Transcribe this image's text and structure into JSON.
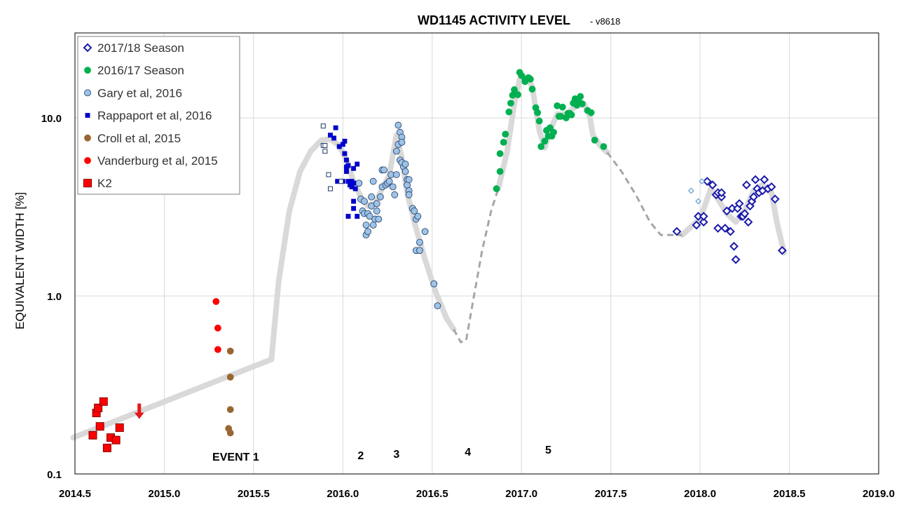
{
  "chart_data": {
    "type": "scatter",
    "title": "WD1145 ACTIVITY LEVEL",
    "subtitle": "- v8618",
    "ylabel": "EQUIVALENT WIDTH [%]",
    "xlabel": "",
    "xlim": [
      2014.5,
      2019.0
    ],
    "ylim": [
      0.1,
      30
    ],
    "yscale": "log",
    "grid": true,
    "legend_position": "top-left",
    "x_ticks": [
      "2014.5",
      "2015.0",
      "2015.5",
      "2016.0",
      "2016.5",
      "2017.0",
      "2017.5",
      "2018.0",
      "2018.5",
      "2019.0"
    ],
    "x_tick_values": [
      2014.5,
      2015.0,
      2015.5,
      2016.0,
      2016.5,
      2017.0,
      2017.5,
      2018.0,
      2018.5,
      2019.0
    ],
    "y_ticks": [
      "0.1",
      "1.0",
      "10.0"
    ],
    "y_tick_values": [
      0.1,
      1.0,
      10.0
    ],
    "annotations": [
      {
        "text": "EVENT 1",
        "x": 2015.4,
        "y": 0.1
      },
      {
        "text": "2",
        "x": 2016.1,
        "y": 0.1
      },
      {
        "text": "3",
        "x": 2016.3,
        "y": 0.1
      },
      {
        "text": "4",
        "x": 2016.7,
        "y": 0.1
      },
      {
        "text": "5",
        "x": 2017.15,
        "y": 0.1
      }
    ],
    "upper_limit_arrow": {
      "x": 2014.86,
      "y": 0.2,
      "color": "#e31a1c"
    },
    "trend_solid_segments": [
      [
        [
          2014.49,
          0.16
        ],
        [
          2015.6,
          0.44
        ],
        [
          2015.64,
          1.2
        ],
        [
          2015.7,
          3.0
        ],
        [
          2015.76,
          5.0
        ],
        [
          2015.82,
          6.5
        ],
        [
          2015.88,
          7.5
        ],
        [
          2015.93,
          7.6
        ],
        [
          2015.98,
          7.0
        ],
        [
          2016.02,
          5.8
        ],
        [
          2016.06,
          4.4
        ],
        [
          2016.1,
          3.6
        ],
        [
          2016.14,
          3.2
        ],
        [
          2016.18,
          3.3
        ],
        [
          2016.22,
          4.0
        ],
        [
          2016.26,
          4.8
        ],
        [
          2016.3,
          8.0
        ],
        [
          2016.33,
          6.0
        ],
        [
          2016.36,
          3.8
        ],
        [
          2016.4,
          2.6
        ],
        [
          2016.46,
          1.6
        ],
        [
          2016.52,
          1.05
        ],
        [
          2016.58,
          0.75
        ],
        [
          2016.62,
          0.65
        ]
      ],
      [
        [
          2016.87,
          4.0
        ],
        [
          2016.92,
          6.5
        ],
        [
          2016.96,
          12.0
        ],
        [
          2016.99,
          16.5
        ],
        [
          2017.03,
          17.0
        ],
        [
          2017.06,
          15.0
        ],
        [
          2017.1,
          8.5
        ],
        [
          2017.13,
          6.8
        ],
        [
          2017.16,
          8.5
        ],
        [
          2017.2,
          10.5
        ],
        [
          2017.25,
          10.5
        ],
        [
          2017.3,
          11.5
        ],
        [
          2017.35,
          12.0
        ],
        [
          2017.38,
          10.5
        ],
        [
          2017.4,
          8.0
        ],
        [
          2017.44,
          7.0
        ],
        [
          2017.48,
          6.4
        ]
      ],
      [
        [
          2017.9,
          2.2
        ],
        [
          2017.96,
          2.5
        ],
        [
          2018.0,
          2.7
        ],
        [
          2018.06,
          4.0
        ],
        [
          2018.1,
          3.5
        ],
        [
          2018.15,
          2.9
        ],
        [
          2018.2,
          2.6
        ],
        [
          2018.25,
          3.0
        ],
        [
          2018.3,
          3.9
        ],
        [
          2018.35,
          4.2
        ],
        [
          2018.4,
          3.8
        ],
        [
          2018.43,
          2.6
        ],
        [
          2018.47,
          1.75
        ]
      ]
    ],
    "trend_dashed_segments": [
      [
        [
          2016.62,
          0.65
        ],
        [
          2016.66,
          0.55
        ],
        [
          2016.69,
          0.56
        ],
        [
          2016.73,
          0.95
        ],
        [
          2016.78,
          1.8
        ],
        [
          2016.83,
          3.0
        ],
        [
          2016.87,
          4.0
        ]
      ],
      [
        [
          2017.48,
          6.4
        ],
        [
          2017.56,
          5.0
        ],
        [
          2017.64,
          3.7
        ],
        [
          2017.72,
          2.6
        ],
        [
          2017.78,
          2.2
        ],
        [
          2017.85,
          2.2
        ],
        [
          2017.9,
          2.2
        ]
      ]
    ],
    "series": [
      {
        "name": "2017/18 Season",
        "marker": "diamond",
        "color": "#1a1aaa",
        "fill": "#ffffff",
        "points": [
          [
            2017.87,
            2.3
          ],
          [
            2017.98,
            2.5
          ],
          [
            2017.99,
            2.8
          ],
          [
            2018.02,
            2.6
          ],
          [
            2018.02,
            2.8
          ],
          [
            2018.04,
            4.4
          ],
          [
            2018.07,
            4.2
          ],
          [
            2018.09,
            3.7
          ],
          [
            2018.1,
            3.8
          ],
          [
            2018.12,
            3.6
          ],
          [
            2018.12,
            3.8
          ],
          [
            2018.1,
            2.4
          ],
          [
            2018.14,
            2.4
          ],
          [
            2018.15,
            3.0
          ],
          [
            2018.17,
            2.3
          ],
          [
            2018.18,
            3.1
          ],
          [
            2018.19,
            1.9
          ],
          [
            2018.2,
            1.6
          ],
          [
            2018.21,
            3.1
          ],
          [
            2018.22,
            3.3
          ],
          [
            2018.23,
            2.8
          ],
          [
            2018.24,
            2.8
          ],
          [
            2018.25,
            2.9
          ],
          [
            2018.26,
            4.2
          ],
          [
            2018.27,
            2.6
          ],
          [
            2018.28,
            3.2
          ],
          [
            2018.29,
            3.4
          ],
          [
            2018.3,
            3.6
          ],
          [
            2018.31,
            4.5
          ],
          [
            2018.32,
            4.0
          ],
          [
            2018.33,
            3.8
          ],
          [
            2018.35,
            3.9
          ],
          [
            2018.36,
            4.5
          ],
          [
            2018.38,
            4.0
          ],
          [
            2018.4,
            4.1
          ],
          [
            2018.42,
            3.5
          ],
          [
            2018.46,
            1.8
          ]
        ]
      },
      {
        "name": "",
        "marker": "diamond-small",
        "color": "#5b9bd5",
        "fill": "#ffffff",
        "points": [
          [
            2017.95,
            3.9
          ],
          [
            2017.99,
            3.4
          ],
          [
            2018.01,
            4.4
          ]
        ]
      },
      {
        "name": "2016/17 Season",
        "marker": "circle",
        "color": "#00b050",
        "fill": "#00b050",
        "points": [
          [
            2016.86,
            4.0
          ],
          [
            2016.88,
            5.0
          ],
          [
            2016.88,
            6.3
          ],
          [
            2016.9,
            7.3
          ],
          [
            2016.91,
            8.1
          ],
          [
            2016.93,
            10.8
          ],
          [
            2016.94,
            12.1
          ],
          [
            2016.95,
            13.4
          ],
          [
            2016.96,
            14.4
          ],
          [
            2016.98,
            13.5
          ],
          [
            2016.99,
            18.0
          ],
          [
            2017.0,
            17.3
          ],
          [
            2017.02,
            16.5
          ],
          [
            2017.02,
            16.0
          ],
          [
            2017.04,
            16.8
          ],
          [
            2017.05,
            16.5
          ],
          [
            2017.06,
            14.5
          ],
          [
            2017.08,
            11.4
          ],
          [
            2017.09,
            10.7
          ],
          [
            2017.1,
            9.6
          ],
          [
            2017.11,
            6.9
          ],
          [
            2017.13,
            7.4
          ],
          [
            2017.14,
            8.5
          ],
          [
            2017.15,
            7.9
          ],
          [
            2017.16,
            8.8
          ],
          [
            2017.17,
            7.9
          ],
          [
            2017.18,
            8.3
          ],
          [
            2017.2,
            11.7
          ],
          [
            2017.21,
            10.2
          ],
          [
            2017.22,
            10.2
          ],
          [
            2017.23,
            11.5
          ],
          [
            2017.25,
            10.0
          ],
          [
            2017.26,
            10.6
          ],
          [
            2017.27,
            10.6
          ],
          [
            2017.28,
            10.4
          ],
          [
            2017.29,
            12.1
          ],
          [
            2017.3,
            12.8
          ],
          [
            2017.31,
            11.8
          ],
          [
            2017.32,
            12.5
          ],
          [
            2017.33,
            13.2
          ],
          [
            2017.34,
            12.0
          ],
          [
            2017.37,
            11.0
          ],
          [
            2017.39,
            10.7
          ],
          [
            2017.41,
            7.5
          ],
          [
            2017.46,
            6.9
          ]
        ]
      },
      {
        "name": "Gary et al, 2016",
        "marker": "circle",
        "color": "#1f3864",
        "fill": "#9dc3e6",
        "points": [
          [
            2016.09,
            4.3
          ],
          [
            2016.1,
            3.5
          ],
          [
            2016.11,
            3.0
          ],
          [
            2016.12,
            3.4
          ],
          [
            2016.12,
            2.9
          ],
          [
            2016.13,
            2.5
          ],
          [
            2016.13,
            2.2
          ],
          [
            2016.14,
            2.3
          ],
          [
            2016.14,
            2.9
          ],
          [
            2016.15,
            2.8
          ],
          [
            2016.16,
            3.2
          ],
          [
            2016.16,
            3.6
          ],
          [
            2016.17,
            4.4
          ],
          [
            2016.17,
            2.5
          ],
          [
            2016.18,
            2.7
          ],
          [
            2016.19,
            3.0
          ],
          [
            2016.19,
            3.3
          ],
          [
            2016.2,
            2.7
          ],
          [
            2016.21,
            3.6
          ],
          [
            2016.22,
            4.1
          ],
          [
            2016.22,
            5.1
          ],
          [
            2016.23,
            5.1
          ],
          [
            2016.24,
            4.2
          ],
          [
            2016.25,
            4.3
          ],
          [
            2016.26,
            4.4
          ],
          [
            2016.27,
            4.8
          ],
          [
            2016.28,
            4.1
          ],
          [
            2016.29,
            3.7
          ],
          [
            2016.3,
            6.5
          ],
          [
            2016.31,
            9.1
          ],
          [
            2016.31,
            7.1
          ],
          [
            2016.32,
            8.3
          ],
          [
            2016.32,
            5.8
          ],
          [
            2016.33,
            7.8
          ],
          [
            2016.33,
            7.3
          ],
          [
            2016.33,
            5.6
          ],
          [
            2016.34,
            5.3
          ],
          [
            2016.35,
            5.5
          ],
          [
            2016.35,
            5.0
          ],
          [
            2016.36,
            4.5
          ],
          [
            2016.36,
            4.2
          ],
          [
            2016.37,
            3.9
          ],
          [
            2016.37,
            3.7
          ],
          [
            2016.37,
            4.5
          ],
          [
            2016.39,
            3.1
          ],
          [
            2016.4,
            3.0
          ],
          [
            2016.41,
            2.7
          ],
          [
            2016.42,
            2.8
          ],
          [
            2016.41,
            1.8
          ],
          [
            2016.43,
            1.8
          ],
          [
            2016.43,
            2.0
          ],
          [
            2016.46,
            2.3
          ],
          [
            2016.51,
            1.17
          ],
          [
            2016.53,
            0.88
          ],
          [
            2016.3,
            4.8
          ]
        ]
      },
      {
        "name": "Rappaport et al, 2016",
        "marker": "square-small",
        "color": "#0000cc",
        "fill": "#0000cc",
        "points": [
          [
            2015.93,
            8.0
          ],
          [
            2015.95,
            7.7
          ],
          [
            2015.96,
            8.8
          ],
          [
            2015.98,
            6.9
          ],
          [
            2016.0,
            7.1
          ],
          [
            2016.01,
            7.4
          ],
          [
            2016.01,
            6.3
          ],
          [
            2016.02,
            5.8
          ],
          [
            2016.02,
            5.3
          ],
          [
            2016.02,
            5.0
          ],
          [
            2016.03,
            5.4
          ],
          [
            2016.04,
            4.2
          ],
          [
            2016.05,
            4.4
          ],
          [
            2016.05,
            4.1
          ],
          [
            2016.06,
            4.3
          ],
          [
            2016.06,
            3.4
          ],
          [
            2016.06,
            3.1
          ],
          [
            2016.03,
            2.8
          ],
          [
            2016.07,
            4.0
          ],
          [
            2016.08,
            5.5
          ],
          [
            2016.08,
            2.8
          ],
          [
            2016.06,
            5.2
          ],
          [
            2016.0,
            4.4
          ],
          [
            2016.03,
            4.4
          ],
          [
            2015.97,
            4.4
          ]
        ]
      },
      {
        "name": "",
        "marker": "square-open",
        "color": "#1f3864",
        "fill": "#ffffff",
        "points": [
          [
            2015.89,
            9.0
          ],
          [
            2015.89,
            7.0
          ],
          [
            2015.9,
            6.5
          ],
          [
            2015.9,
            7.0
          ],
          [
            2015.92,
            4.8
          ],
          [
            2015.93,
            4.0
          ],
          [
            2015.99,
            4.4
          ]
        ]
      },
      {
        "name": "Croll et al, 2015",
        "marker": "circle",
        "color": "#996633",
        "fill": "#996633",
        "points": [
          [
            2015.37,
            0.49
          ],
          [
            2015.37,
            0.35
          ],
          [
            2015.37,
            0.23
          ],
          [
            2015.36,
            0.18
          ],
          [
            2015.37,
            0.17
          ]
        ]
      },
      {
        "name": "Vanderburg et al, 2015",
        "marker": "circle",
        "color": "#ff0000",
        "fill": "#ff0000",
        "points": [
          [
            2015.29,
            0.93
          ],
          [
            2015.3,
            0.66
          ],
          [
            2015.3,
            0.5
          ]
        ]
      },
      {
        "name": "K2",
        "marker": "square",
        "color": "#800000",
        "fill": "#ff0000",
        "points": [
          [
            2014.6,
            0.165
          ],
          [
            2014.62,
            0.22
          ],
          [
            2014.63,
            0.235
          ],
          [
            2014.64,
            0.185
          ],
          [
            2014.66,
            0.255
          ],
          [
            2014.68,
            0.14
          ],
          [
            2014.7,
            0.16
          ],
          [
            2014.73,
            0.155
          ],
          [
            2014.75,
            0.182
          ]
        ]
      }
    ]
  }
}
